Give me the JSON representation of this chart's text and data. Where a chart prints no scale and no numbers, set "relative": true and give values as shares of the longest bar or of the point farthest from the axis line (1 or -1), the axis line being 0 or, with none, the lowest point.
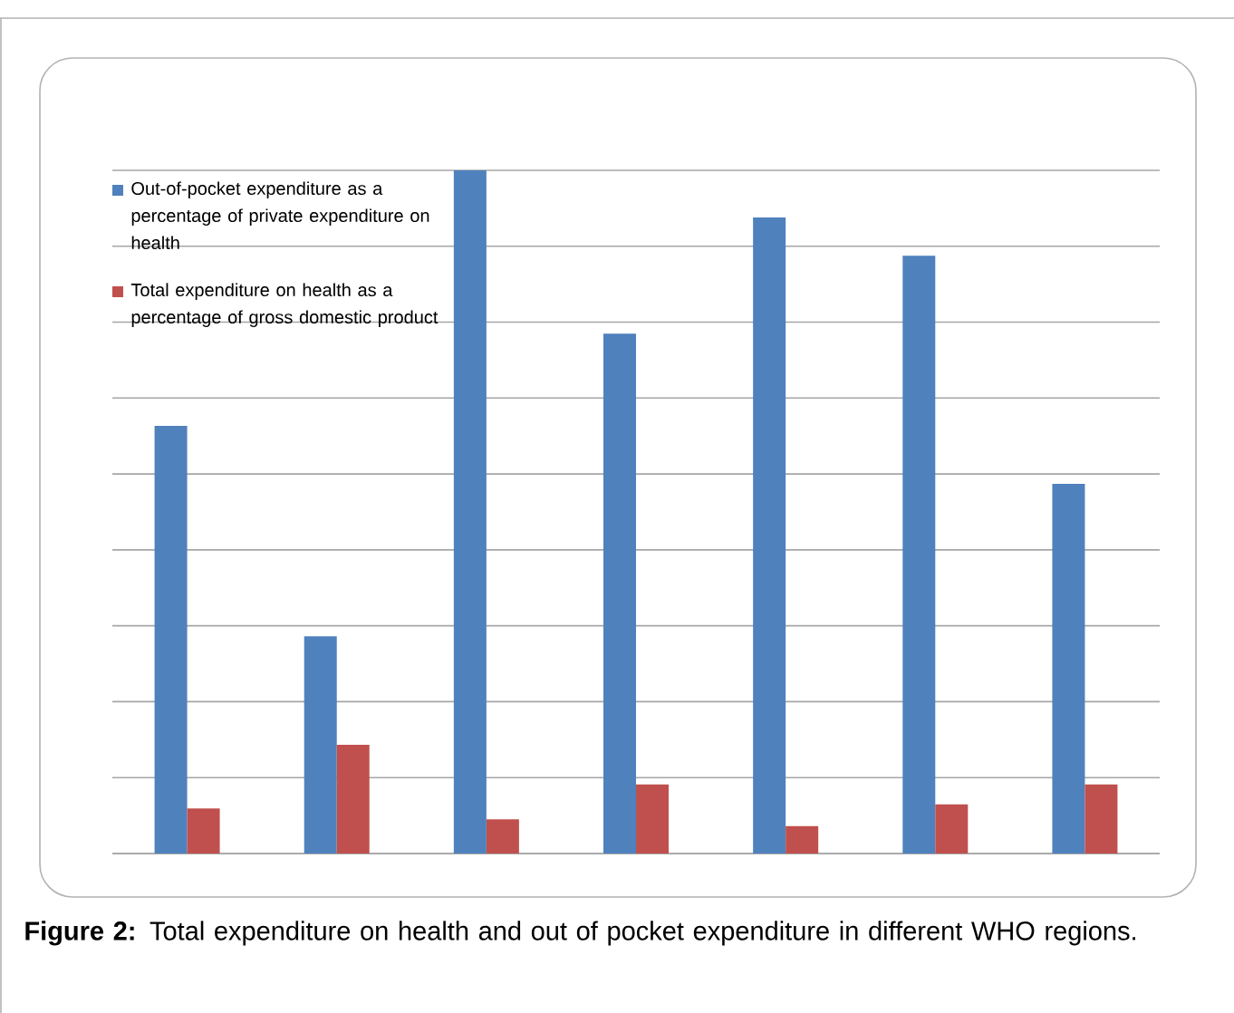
{
  "chart_data": {
    "type": "bar",
    "relative": true,
    "grid": "y",
    "legend": "top left",
    "tick_labels": false,
    "categories": [
      null,
      null,
      null,
      null,
      null,
      null,
      null
    ],
    "series": [
      {
        "name": "Out-of-pocket expenditure as a percentage of private expenditure on health",
        "color": "#4f81bd",
        "values": [
          0.626,
          0.318,
          1,
          0.761,
          0.931,
          0.875,
          0.541
        ]
      },
      {
        "name": "Total expenditure on health as a percentage of gross domestic product",
        "color": "#c0504d",
        "values": [
          0.066,
          0.159,
          0.05,
          0.101,
          0.04,
          0.072,
          0.101
        ]
      }
    ],
    "annotations": [
      "**Figure 2:** Total expenditure on health and out of pocket expenditure in different WHO regions."
    ]
  }
}
